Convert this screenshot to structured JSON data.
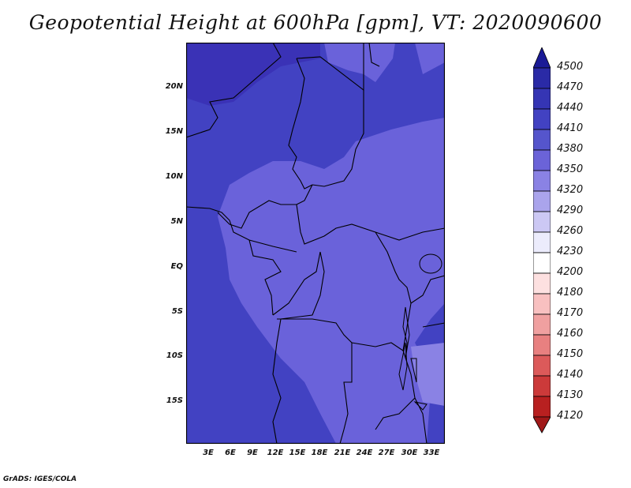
{
  "title": "Geopotential Height at 600hPa [gpm], VT: 2020090600",
  "credit": "GrADS: IGES/COLA",
  "lat_labels": [
    "20N",
    "15N",
    "10N",
    "5N",
    "EQ",
    "5S",
    "10S",
    "15S"
  ],
  "lon_labels": [
    "3E",
    "6E",
    "9E",
    "12E",
    "15E",
    "18E",
    "21E",
    "24E",
    "27E",
    "30E",
    "33E"
  ],
  "colorbar": {
    "levels": [
      "4500",
      "4470",
      "4440",
      "4410",
      "4380",
      "4350",
      "4320",
      "4290",
      "4260",
      "4230",
      "4200",
      "4180",
      "4170",
      "4160",
      "4150",
      "4140",
      "4130",
      "4120"
    ],
    "colors": [
      "#1a1a96",
      "#2a2aa6",
      "#3535b4",
      "#4242c2",
      "#5555cc",
      "#6b63d8",
      "#8a82e4",
      "#aaa4ec",
      "#ccc8f4",
      "#ececfc",
      "#ffffff",
      "#fde0e0",
      "#f8c0c0",
      "#f0a0a0",
      "#e88080",
      "#dc5a5a",
      "#cc3a3a",
      "#b82020",
      "#a01818"
    ]
  },
  "colors": {
    "field_high": "#4040c0",
    "field_mid": "#6a62da",
    "field_top": "#3a30b4",
    "border": "#000000"
  }
}
